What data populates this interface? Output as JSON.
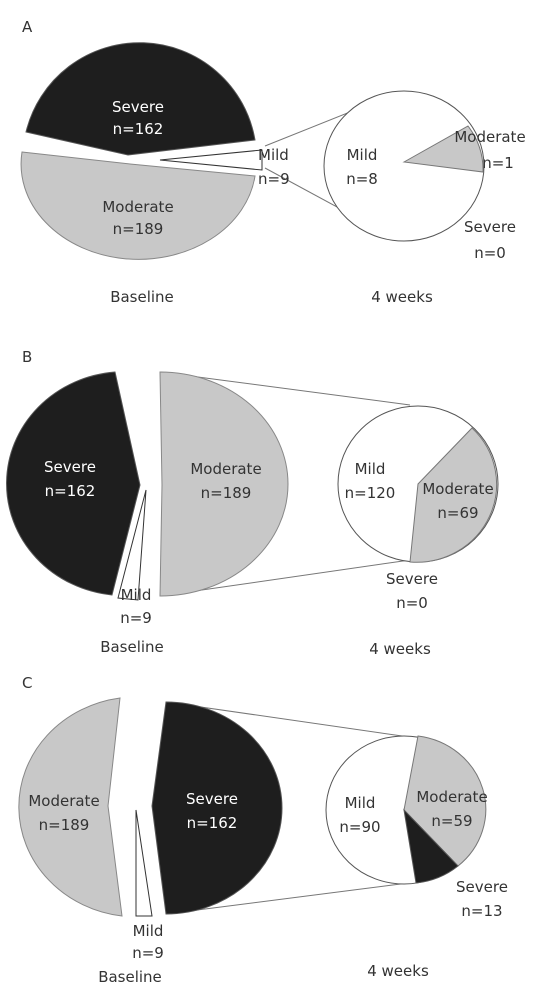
{
  "chart_data": [
    {
      "type": "pie",
      "panel": "A",
      "baseline": {
        "caption": "Baseline",
        "slices": [
          {
            "label": "Severe",
            "n_text": "n=162",
            "value": 162,
            "color": "#1e1e1e"
          },
          {
            "label": "Moderate",
            "n_text": "n=189",
            "value": 189,
            "color": "#c8c8c8"
          },
          {
            "label": "Mild",
            "n_text": "n=9",
            "value": 9,
            "color": "#ffffff"
          }
        ]
      },
      "followup": {
        "caption": "4 weeks",
        "slices": [
          {
            "label": "Mild",
            "n_text": "n=8",
            "value": 8,
            "color": "#ffffff"
          },
          {
            "label": "Moderate",
            "n_text": "n=1",
            "value": 1,
            "color": "#c8c8c8"
          },
          {
            "label": "Severe",
            "n_text": "n=0",
            "value": 0,
            "color": "#1e1e1e"
          }
        ]
      }
    },
    {
      "type": "pie",
      "panel": "B",
      "baseline": {
        "caption": "Baseline",
        "slices": [
          {
            "label": "Severe",
            "n_text": "n=162",
            "value": 162,
            "color": "#1e1e1e"
          },
          {
            "label": "Moderate",
            "n_text": "n=189",
            "value": 189,
            "color": "#c8c8c8"
          },
          {
            "label": "Mild",
            "n_text": "n=9",
            "value": 9,
            "color": "#ffffff"
          }
        ]
      },
      "followup": {
        "caption": "4 weeks",
        "slices": [
          {
            "label": "Mild",
            "n_text": "n=120",
            "value": 120,
            "color": "#ffffff"
          },
          {
            "label": "Moderate",
            "n_text": "n=69",
            "value": 69,
            "color": "#c8c8c8"
          },
          {
            "label": "Severe",
            "n_text": "n=0",
            "value": 0,
            "color": "#1e1e1e"
          }
        ]
      }
    },
    {
      "type": "pie",
      "panel": "C",
      "baseline": {
        "caption": "Baseline",
        "slices": [
          {
            "label": "Moderate",
            "n_text": "n=189",
            "value": 189,
            "color": "#c8c8c8"
          },
          {
            "label": "Severe",
            "n_text": "n=162",
            "value": 162,
            "color": "#1e1e1e"
          },
          {
            "label": "Mild",
            "n_text": "n=9",
            "value": 9,
            "color": "#ffffff"
          }
        ]
      },
      "followup": {
        "caption": "4 weeks",
        "slices": [
          {
            "label": "Mild",
            "n_text": "n=90",
            "value": 90,
            "color": "#ffffff"
          },
          {
            "label": "Moderate",
            "n_text": "n=59",
            "value": 59,
            "color": "#c8c8c8"
          },
          {
            "label": "Severe",
            "n_text": "n=13",
            "value": 13,
            "color": "#1e1e1e"
          }
        ]
      }
    }
  ]
}
